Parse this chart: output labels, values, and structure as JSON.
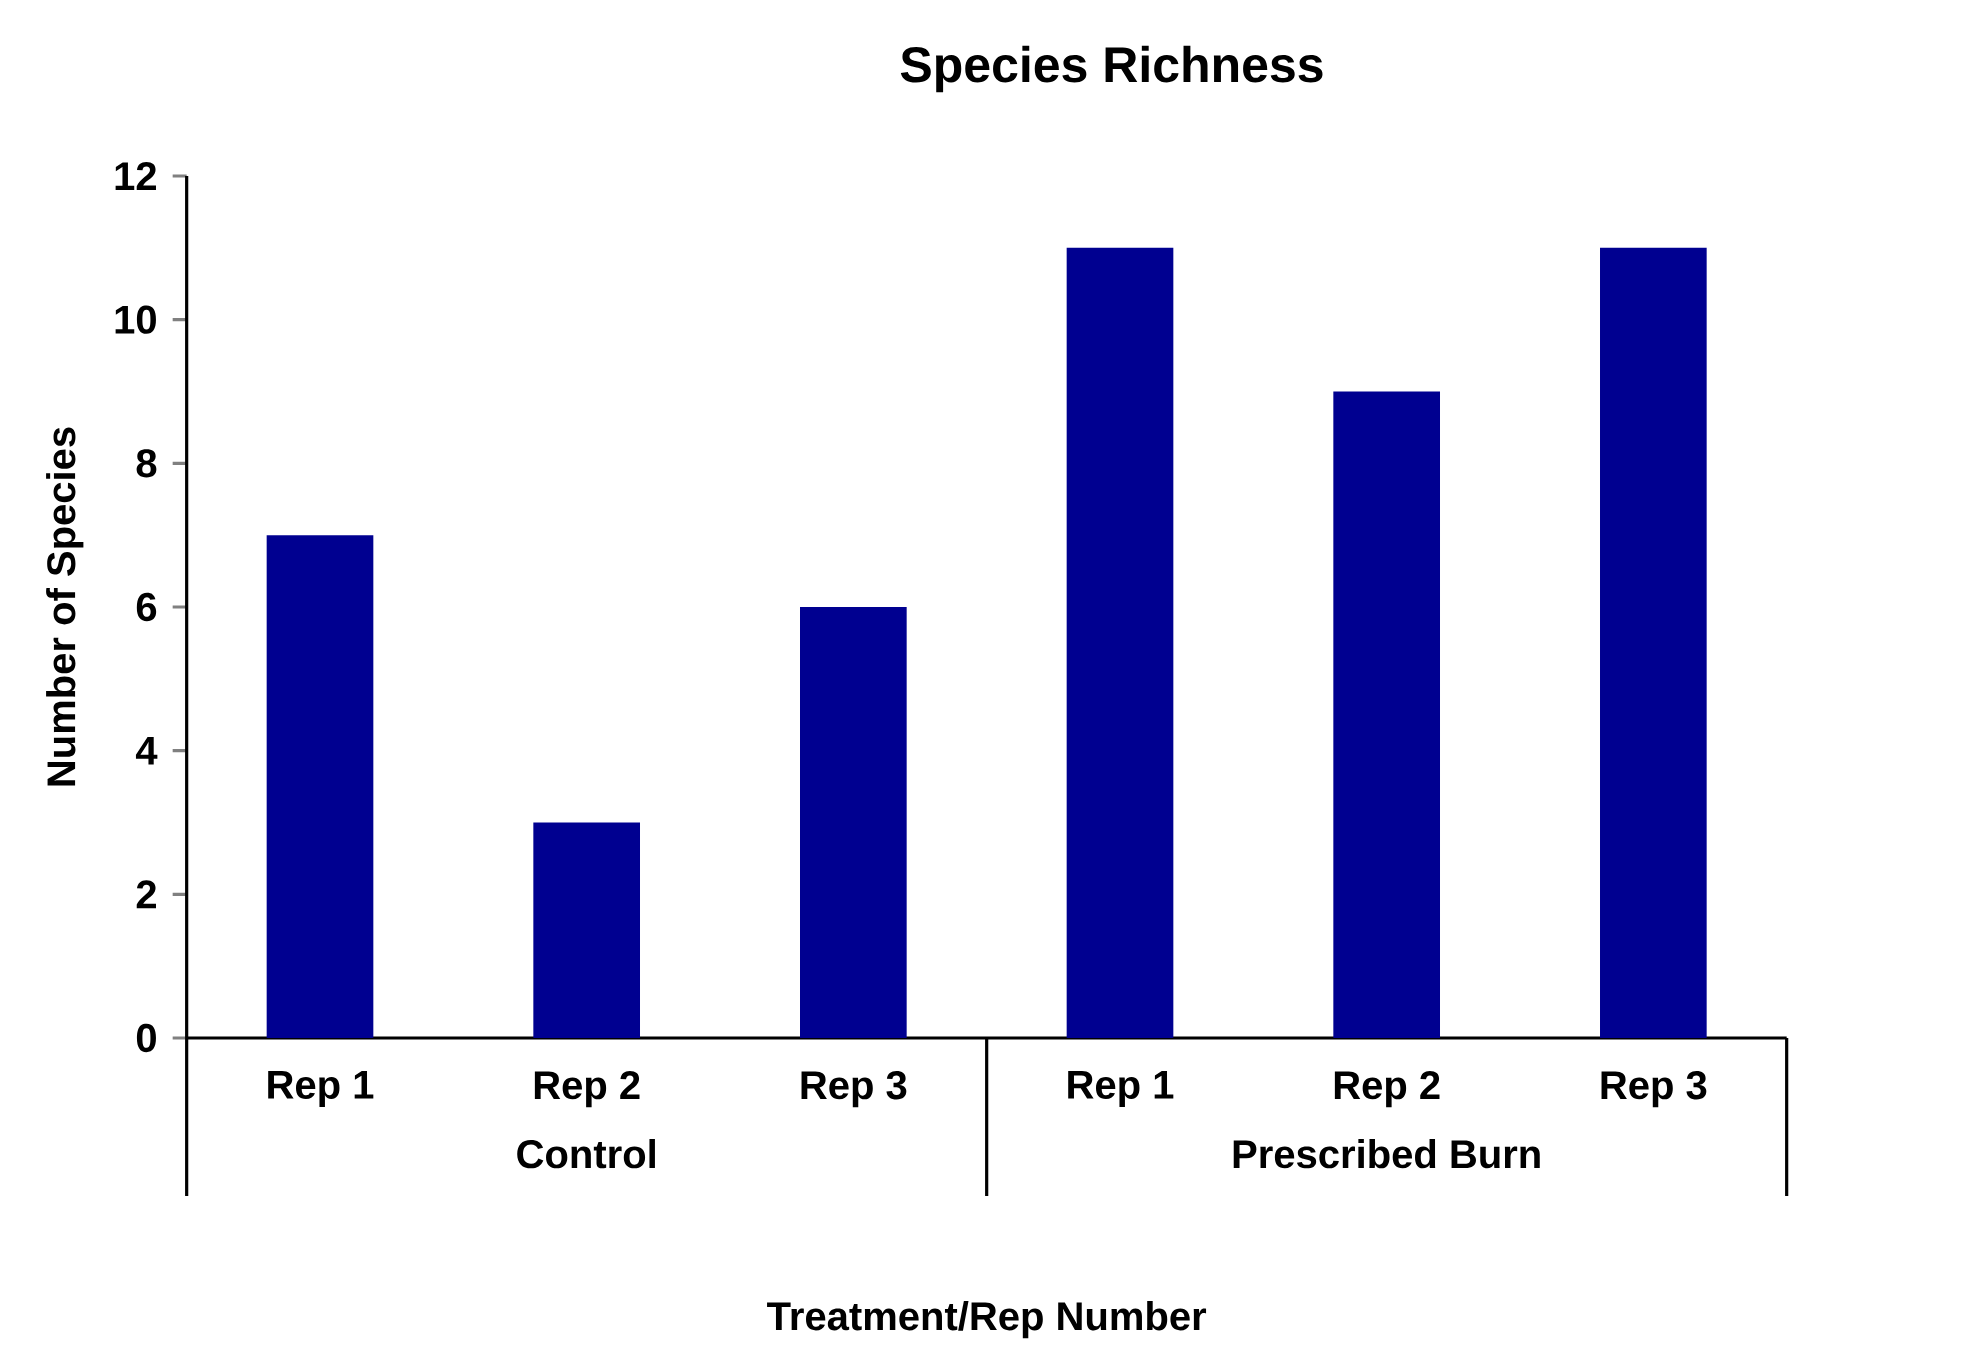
{
  "chart_data": {
    "type": "bar",
    "title": "Species Richness",
    "xlabel": "Treatment/Rep Number",
    "ylabel": "Number of Species",
    "categories": [
      "Rep 1",
      "Rep 2",
      "Rep 3",
      "Rep 1",
      "Rep 2",
      "Rep 3"
    ],
    "values": [
      7,
      3,
      6,
      11,
      9,
      11
    ],
    "color": "#000090",
    "ylim": [
      0,
      12
    ],
    "yticks": [
      0,
      2,
      4,
      6,
      8,
      10,
      12
    ],
    "grid": false,
    "annotations": [
      "Control",
      "Prescribed Burn"
    ]
  }
}
